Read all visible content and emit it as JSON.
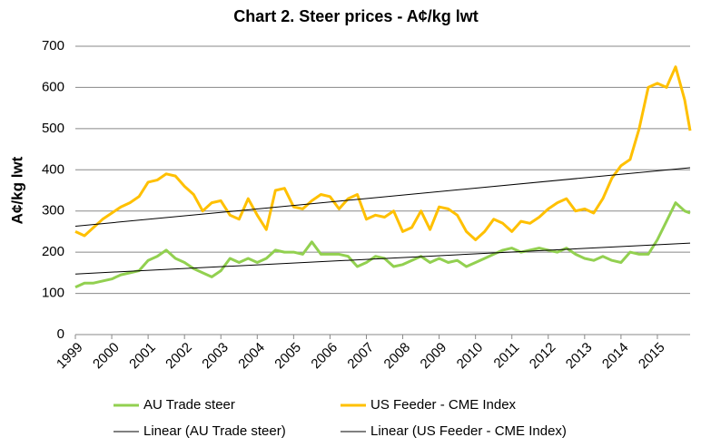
{
  "chart_data": {
    "type": "line",
    "title": "Chart 2. Steer prices - A¢/kg lwt",
    "y_label": "A¢/kg lwt",
    "x": [
      1999,
      1999.25,
      1999.5,
      1999.75,
      2000,
      2000.25,
      2000.5,
      2000.75,
      2001,
      2001.25,
      2001.5,
      2001.75,
      2002,
      2002.25,
      2002.5,
      2002.75,
      2003,
      2003.25,
      2003.5,
      2003.75,
      2004,
      2004.25,
      2004.5,
      2004.75,
      2005,
      2005.25,
      2005.5,
      2005.75,
      2006,
      2006.25,
      2006.5,
      2006.75,
      2007,
      2007.25,
      2007.5,
      2007.75,
      2008,
      2008.25,
      2008.5,
      2008.75,
      2009,
      2009.25,
      2009.5,
      2009.75,
      2010,
      2010.25,
      2010.5,
      2010.75,
      2011,
      2011.25,
      2011.5,
      2011.75,
      2012,
      2012.25,
      2012.5,
      2012.75,
      2013,
      2013.25,
      2013.5,
      2013.75,
      2014,
      2014.25,
      2014.5,
      2014.75,
      2015,
      2015.25,
      2015.5,
      2015.75,
      2015.9
    ],
    "series": [
      {
        "name": "AU Trade steer",
        "color": "#92d050",
        "values": [
          115,
          125,
          125,
          130,
          135,
          145,
          150,
          155,
          180,
          190,
          205,
          185,
          175,
          160,
          150,
          140,
          155,
          185,
          175,
          185,
          175,
          185,
          205,
          200,
          200,
          195,
          225,
          195,
          195,
          195,
          190,
          165,
          175,
          190,
          185,
          165,
          170,
          180,
          190,
          175,
          185,
          175,
          180,
          165,
          175,
          185,
          195,
          205,
          210,
          200,
          205,
          210,
          205,
          200,
          210,
          195,
          185,
          180,
          190,
          180,
          175,
          200,
          195,
          195,
          230,
          275,
          320,
          300,
          295
        ]
      },
      {
        "name": "US Feeder - CME Index",
        "color": "#ffc000",
        "values": [
          250,
          240,
          260,
          280,
          295,
          310,
          320,
          335,
          370,
          375,
          390,
          385,
          360,
          340,
          300,
          320,
          325,
          290,
          280,
          330,
          290,
          255,
          350,
          355,
          310,
          305,
          325,
          340,
          335,
          305,
          330,
          340,
          280,
          290,
          285,
          300,
          250,
          260,
          300,
          255,
          310,
          305,
          290,
          250,
          230,
          250,
          280,
          270,
          250,
          275,
          270,
          285,
          305,
          320,
          330,
          300,
          305,
          295,
          330,
          380,
          410,
          425,
          500,
          600,
          610,
          600,
          650,
          570,
          495
        ]
      },
      {
        "name": "Linear (AU Trade steer)",
        "color": "#000000",
        "x": [
          1999,
          2015.9
        ],
        "values": [
          147,
          222
        ]
      },
      {
        "name": "Linear (US Feeder - CME Index)",
        "color": "#000000",
        "x": [
          1999,
          2015.9
        ],
        "values": [
          263,
          405
        ]
      }
    ],
    "xlim": [
      1999,
      2015.9
    ],
    "xticks": [
      1999,
      2000,
      2001,
      2002,
      2003,
      2004,
      2005,
      2006,
      2007,
      2008,
      2009,
      2010,
      2011,
      2012,
      2013,
      2014,
      2015
    ],
    "ylim": [
      0,
      700
    ],
    "yticks": [
      0,
      100,
      200,
      300,
      400,
      500,
      600,
      700
    ],
    "grid": true,
    "legend": "bottom"
  }
}
